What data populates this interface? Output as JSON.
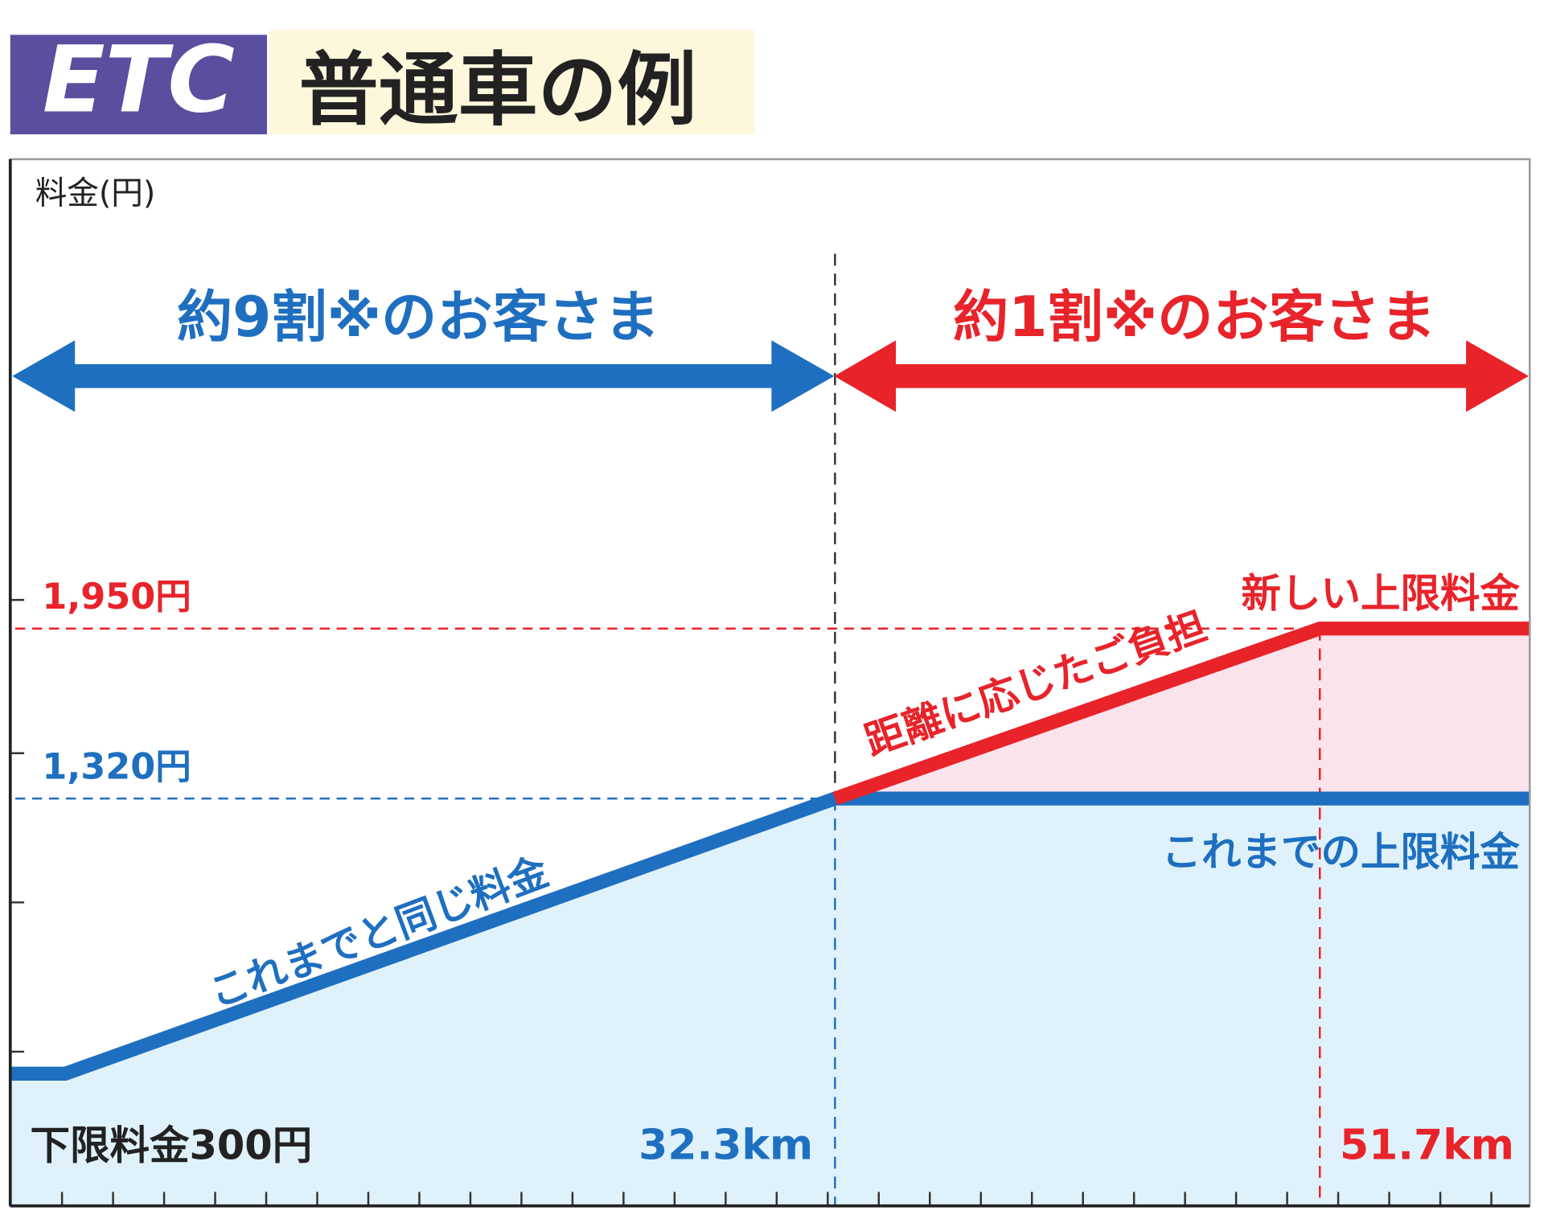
{
  "header": {
    "logo": "ETC",
    "title": "普通車の例"
  },
  "chart_data": {
    "type": "line",
    "ylabel": "料金(円)",
    "xlim": [
      -0.7,
      60.1
    ],
    "ylim": [
      -190,
      3690
    ],
    "xticks": [
      {
        "value": 32.3,
        "label": "32.3km"
      },
      {
        "value": 51.7,
        "label": "51.7km"
      }
    ],
    "yticks": [
      {
        "value": 1950,
        "label": "1,950円"
      },
      {
        "value": 1320,
        "label": "1,320円"
      }
    ],
    "series": [
      {
        "color": "#1f6fc0",
        "fill": "#dff2fb",
        "x": [
          -0.7,
          1.5,
          32.3,
          60.1
        ],
        "values": [
          300,
          300,
          1320,
          1320
        ]
      },
      {
        "color": "#e8232a",
        "fill": "#fbe3ec",
        "x": [
          32.3,
          51.7,
          60.1
        ],
        "values": [
          1320,
          1950,
          1950
        ]
      }
    ],
    "annotations": {
      "left_group": "約9割※のお客さま",
      "right_group": "約1割※のお客さま",
      "new_cap": "新しい上限料金",
      "old_cap": "これまでの上限料金",
      "new_slope": "距離に応じたご負担",
      "old_slope": "これまでと同じ料金",
      "floor": "下限料金300円"
    }
  }
}
